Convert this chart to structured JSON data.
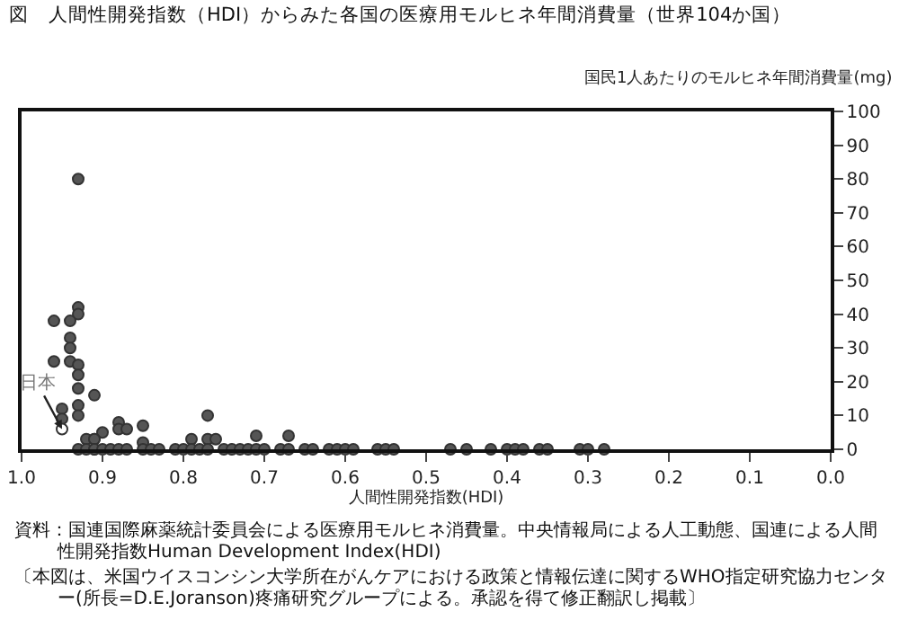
{
  "chart_data": {
    "type": "scatter",
    "title": "図　人間性開発指数（HDI）からみた各国の医療用モルヒネ年間消費量（世界104か国）",
    "xlabel": "人間性開発指数(HDI)",
    "ylabel": "国民1人あたりのモルヒネ年間消費量(mg)",
    "series": [
      {
        "color": "#555555",
        "x": [
          0.93,
          0.96,
          0.93,
          0.93,
          0.94,
          0.94,
          0.94,
          0.96,
          0.94,
          0.93,
          0.93,
          0.93,
          0.91,
          0.93,
          0.95,
          0.93,
          0.95,
          0.88,
          0.88,
          0.9,
          0.87,
          0.85,
          0.77,
          0.79,
          0.77,
          0.76,
          0.71,
          0.67,
          0.92,
          0.91,
          0.91,
          0.85,
          0.93,
          0.92,
          0.91,
          0.91,
          0.9,
          0.89,
          0.88,
          0.87,
          0.85,
          0.84,
          0.83,
          0.81,
          0.8,
          0.79,
          0.78,
          0.77,
          0.75,
          0.74,
          0.73,
          0.72,
          0.71,
          0.7,
          0.68,
          0.67,
          0.65,
          0.64,
          0.62,
          0.61,
          0.6,
          0.59,
          0.56,
          0.55,
          0.54,
          0.47,
          0.45,
          0.42,
          0.4,
          0.39,
          0.38,
          0.36,
          0.35,
          0.31,
          0.3,
          0.28
        ],
        "values": [
          80,
          38,
          42,
          40,
          38,
          33,
          30,
          26,
          26,
          25,
          22,
          18,
          16,
          13,
          12,
          10,
          9,
          8,
          6,
          5,
          6,
          7,
          10,
          3,
          3,
          3,
          4,
          4,
          3,
          3,
          3,
          2,
          0,
          0,
          0,
          0,
          0,
          0,
          0,
          0,
          0,
          0,
          0,
          0,
          0,
          0,
          0,
          0,
          0,
          0,
          0,
          0,
          0,
          0,
          0,
          0,
          0,
          0,
          0,
          0,
          0,
          0,
          0,
          0,
          0,
          0,
          0,
          0,
          0,
          0,
          0,
          0,
          0,
          0,
          0,
          0
        ]
      },
      {
        "color": "#ffffff",
        "x": [
          0.95
        ],
        "values": [
          6
        ]
      }
    ],
    "xlim": [
      1,
      0
    ],
    "xticks": [
      {
        "value": 1,
        "label": "1.0"
      },
      {
        "value": 0.9,
        "label": "0.9"
      },
      {
        "value": 0.8,
        "label": "0.8"
      },
      {
        "value": 0.7,
        "label": "0.7"
      },
      {
        "value": 0.6,
        "label": "0.6"
      },
      {
        "value": 0.5,
        "label": "0.5"
      },
      {
        "value": 0.4,
        "label": "0.4"
      },
      {
        "value": 0.3,
        "label": "0.3"
      },
      {
        "value": 0.2,
        "label": "0.2"
      },
      {
        "value": 0.1,
        "label": "0.1"
      },
      {
        "value": 0,
        "label": "0.0"
      }
    ],
    "ylim": [
      0,
      100
    ],
    "yticks": [
      0,
      10,
      20,
      30,
      40,
      50,
      60,
      70,
      80,
      90,
      100
    ],
    "marker": "circle",
    "grid": false,
    "annotations": [
      {
        "text": "日本",
        "x": 0.95,
        "y": 6
      },
      "資料：国連国際麻薬統計委員会による医療用モルヒネ消費量。中央情報局による人工動態、国連による人間性開発指数Human Development Index(HDI)",
      "〔本図は、米国ウイスコンシン大学所在がんケアにおける政策と情報伝達に関するWHO指定研究協力センター(所長=D.E.Joranson)疼痛研究グループによる。承認を得て修正翻訳し掲載〕"
    ]
  }
}
